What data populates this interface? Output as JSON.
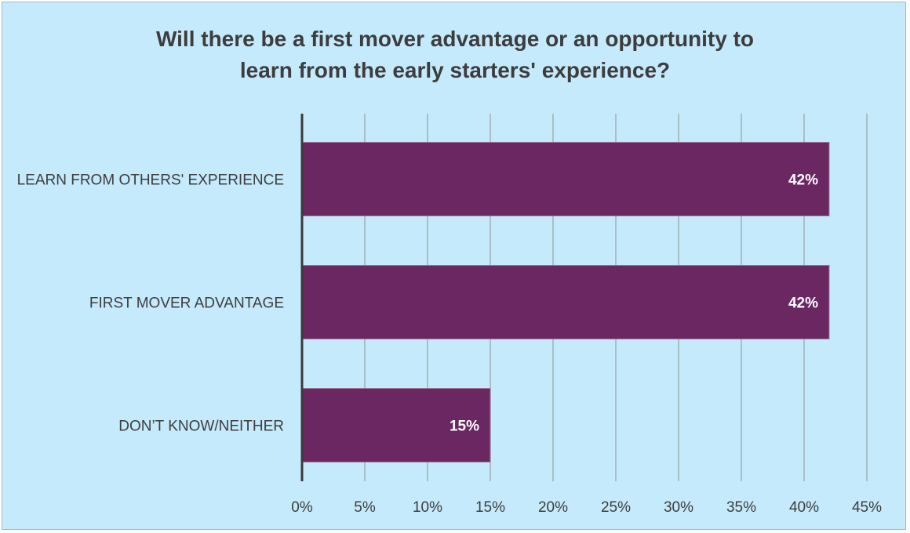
{
  "chart_data": {
    "type": "bar",
    "orientation": "horizontal",
    "title_lines": [
      "Will there be a first mover advantage or an opportunity to",
      "learn from the early starters' experience?"
    ],
    "categories": [
      "LEARN FROM OTHERS' EXPERIENCE",
      "FIRST MOVER ADVANTAGE",
      "DON’T KNOW/NEITHER"
    ],
    "values": [
      42,
      42,
      15
    ],
    "data_labels": [
      "42%",
      "42%",
      "15%"
    ],
    "xlim": [
      0,
      45
    ],
    "x_ticks": [
      0,
      5,
      10,
      15,
      20,
      25,
      30,
      35,
      40,
      45
    ],
    "x_tick_labels": [
      "0%",
      "5%",
      "10%",
      "15%",
      "20%",
      "25%",
      "30%",
      "35%",
      "40%",
      "45%"
    ],
    "grid": "vertical",
    "legend": "none",
    "colors": {
      "background": "#c5eafb",
      "bar": "#6a2762",
      "gridline": "#9aa6ad",
      "axis": "#3a3a3a",
      "text": "#3d3d3d",
      "data_label": "#ffffff"
    }
  }
}
